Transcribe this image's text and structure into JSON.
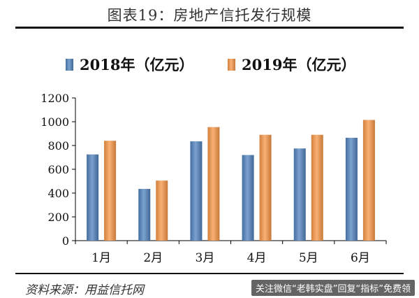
{
  "header": {
    "title": "图表19：房地产信托发行规模"
  },
  "footer": {
    "source": "资料来源：用益信托网",
    "watermark": "关注微信“老韩实盘”回复“指标”免费领"
  },
  "colors": {
    "series_2018": "#4f81bd",
    "series_2019": "#f79646",
    "axis": "#000000"
  },
  "chart_data": {
    "type": "bar",
    "title": "图表19：房地产信托发行规模",
    "categories": [
      "1月",
      "2月",
      "3月",
      "4月",
      "5月",
      "6月"
    ],
    "series": [
      {
        "name": "2018年（亿元）",
        "values": [
          725,
          435,
          835,
          720,
          775,
          865
        ]
      },
      {
        "name": "2019年（亿元）",
        "values": [
          840,
          505,
          955,
          890,
          890,
          1015
        ]
      }
    ],
    "ylim": [
      0,
      1200
    ],
    "yticks": [
      0,
      200,
      400,
      600,
      800,
      1000,
      1200
    ],
    "xlabel": "",
    "ylabel": "",
    "grid": false,
    "legend": "top"
  }
}
